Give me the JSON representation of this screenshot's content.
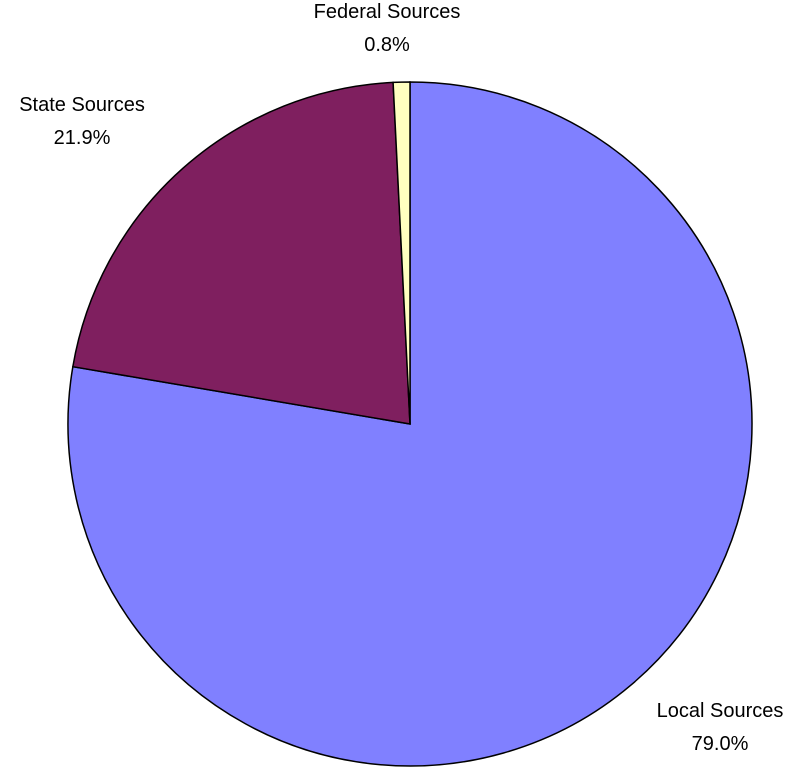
{
  "chart_data": {
    "type": "pie",
    "title": "",
    "slices": [
      {
        "name": "Local Sources",
        "value": 79.0,
        "label": "79.0%",
        "color": "#8080FF"
      },
      {
        "name": "State Sources",
        "value": 21.9,
        "label": "21.9%",
        "color": "#7F1F5F"
      },
      {
        "name": "Federal Sources",
        "value": 0.8,
        "label": "0.8%",
        "color": "#FFFFC0"
      }
    ],
    "start_angle": "12 o'clock",
    "direction": "clockwise",
    "legend": "none"
  }
}
